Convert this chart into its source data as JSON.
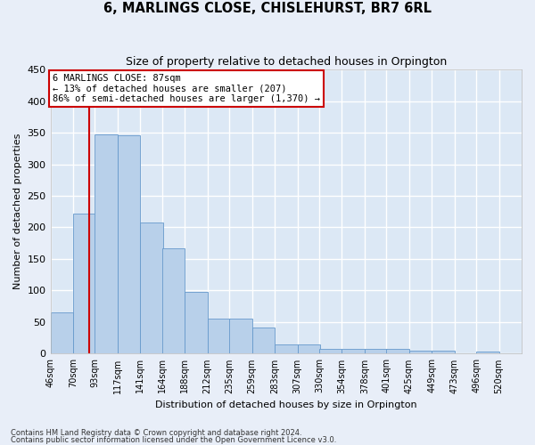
{
  "title": "6, MARLINGS CLOSE, CHISLEHURST, BR7 6RL",
  "subtitle": "Size of property relative to detached houses in Orpington",
  "xlabel": "Distribution of detached houses by size in Orpington",
  "ylabel": "Number of detached properties",
  "bar_color": "#b8d0ea",
  "bar_edge_color": "#6699cc",
  "background_color": "#dce8f5",
  "grid_color": "#ffffff",
  "annotation_box_color": "#cc0000",
  "annotation_text": "6 MARLINGS CLOSE: 87sqm\n← 13% of detached houses are smaller (207)\n86% of semi-detached houses are larger (1,370) →",
  "vline_x": 87,
  "vline_color": "#cc0000",
  "categories": [
    "46sqm",
    "70sqm",
    "93sqm",
    "117sqm",
    "141sqm",
    "164sqm",
    "188sqm",
    "212sqm",
    "235sqm",
    "259sqm",
    "283sqm",
    "307sqm",
    "330sqm",
    "354sqm",
    "378sqm",
    "401sqm",
    "425sqm",
    "449sqm",
    "473sqm",
    "496sqm",
    "520sqm"
  ],
  "bin_edges": [
    46,
    70,
    93,
    117,
    141,
    164,
    188,
    212,
    235,
    259,
    283,
    307,
    330,
    354,
    378,
    401,
    425,
    449,
    473,
    496,
    520
  ],
  "bin_width": 24,
  "values": [
    65,
    222,
    347,
    346,
    208,
    167,
    98,
    56,
    56,
    42,
    14,
    14,
    8,
    8,
    7,
    7,
    5,
    5,
    0,
    4,
    0
  ],
  "ylim": [
    0,
    450
  ],
  "yticks": [
    0,
    50,
    100,
    150,
    200,
    250,
    300,
    350,
    400,
    450
  ],
  "footer1": "Contains HM Land Registry data © Crown copyright and database right 2024.",
  "footer2": "Contains public sector information licensed under the Open Government Licence v3.0.",
  "fig_bg": "#e8eef8"
}
